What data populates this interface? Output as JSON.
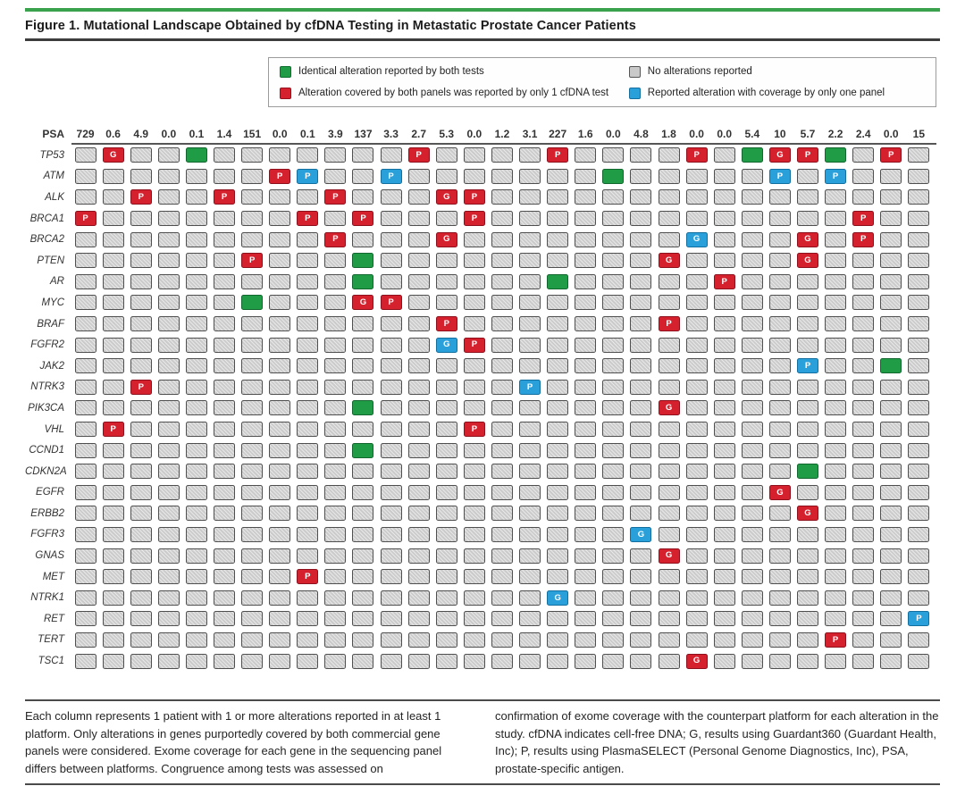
{
  "figure": {
    "title": "Figure 1. Mutational Landscape Obtained by cfDNA Testing in Metastatic Prostate Cancer Patients"
  },
  "legend": {
    "items": [
      {
        "type": "green",
        "color": "#1f9c45",
        "label": "Identical alteration reported by both tests"
      },
      {
        "type": "red",
        "color": "#d5212e",
        "label": "Alteration covered by both panels was reported by only 1 cfDNA test"
      },
      {
        "type": "gray",
        "color": "#c9c9c9",
        "label": "No alterations reported"
      },
      {
        "type": "blue",
        "color": "#2aa0da",
        "label": "Reported alteration with coverage by only one panel"
      }
    ]
  },
  "chart_data": {
    "type": "heatmap",
    "title": "Mutational Landscape Obtained by cfDNA Testing in Metastatic Prostate Cancer Patients",
    "x_header_label": "PSA",
    "x_values": [
      "729",
      "0.6",
      "4.9",
      "0.0",
      "0.1",
      "1.4",
      "151",
      "0.0",
      "0.1",
      "3.9",
      "137",
      "3.3",
      "2.7",
      "5.3",
      "0.0",
      "1.2",
      "3.1",
      "227",
      "1.6",
      "0.0",
      "4.8",
      "1.8",
      "0.0",
      "0.0",
      "5.4",
      "10",
      "5.7",
      "2.2",
      "2.4",
      "0.0",
      "15"
    ],
    "genes": [
      "TP53",
      "ATM",
      "ALK",
      "BRCA1",
      "BRCA2",
      "PTEN",
      "AR",
      "MYC",
      "BRAF",
      "FGFR2",
      "JAK2",
      "NTRK3",
      "PIK3CA",
      "VHL",
      "CCND1",
      "CDKN2A",
      "EGFR",
      "ERBB2",
      "FGFR3",
      "GNAS",
      "MET",
      "NTRK1",
      "RET",
      "TERT",
      "TSC1"
    ],
    "default_state": "gray",
    "state_meanings": {
      "green": "Identical alteration reported by both tests",
      "red": "Alteration covered by both panels was reported by only 1 cfDNA test",
      "gray": "No alterations reported",
      "blue": "Reported alteration with coverage by only one panel"
    },
    "letter_meanings": {
      "G": "Guardant360",
      "P": "PlasmaSELECT"
    },
    "alterations": {
      "TP53": [
        {
          "col": 2,
          "state": "red",
          "label": "G"
        },
        {
          "col": 5,
          "state": "green",
          "label": ""
        },
        {
          "col": 13,
          "state": "red",
          "label": "P"
        },
        {
          "col": 18,
          "state": "red",
          "label": "P"
        },
        {
          "col": 23,
          "state": "red",
          "label": "P"
        },
        {
          "col": 25,
          "state": "green",
          "label": ""
        },
        {
          "col": 26,
          "state": "red",
          "label": "G"
        },
        {
          "col": 27,
          "state": "red",
          "label": "P"
        },
        {
          "col": 28,
          "state": "green",
          "label": ""
        },
        {
          "col": 30,
          "state": "red",
          "label": "P"
        }
      ],
      "ATM": [
        {
          "col": 8,
          "state": "red",
          "label": "P"
        },
        {
          "col": 9,
          "state": "blue",
          "label": "P"
        },
        {
          "col": 12,
          "state": "blue",
          "label": "P"
        },
        {
          "col": 20,
          "state": "green",
          "label": ""
        },
        {
          "col": 26,
          "state": "blue",
          "label": "P"
        },
        {
          "col": 28,
          "state": "blue",
          "label": "P"
        }
      ],
      "ALK": [
        {
          "col": 3,
          "state": "red",
          "label": "P"
        },
        {
          "col": 6,
          "state": "red",
          "label": "P"
        },
        {
          "col": 10,
          "state": "red",
          "label": "P"
        },
        {
          "col": 14,
          "state": "red",
          "label": "G"
        },
        {
          "col": 15,
          "state": "red",
          "label": "P"
        }
      ],
      "BRCA1": [
        {
          "col": 1,
          "state": "red",
          "label": "P"
        },
        {
          "col": 9,
          "state": "red",
          "label": "P"
        },
        {
          "col": 11,
          "state": "red",
          "label": "P"
        },
        {
          "col": 15,
          "state": "red",
          "label": "P"
        },
        {
          "col": 29,
          "state": "red",
          "label": "P"
        }
      ],
      "BRCA2": [
        {
          "col": 10,
          "state": "red",
          "label": "P"
        },
        {
          "col": 14,
          "state": "red",
          "label": "G"
        },
        {
          "col": 23,
          "state": "blue",
          "label": "G"
        },
        {
          "col": 27,
          "state": "red",
          "label": "G"
        },
        {
          "col": 29,
          "state": "red",
          "label": "P"
        }
      ],
      "PTEN": [
        {
          "col": 7,
          "state": "red",
          "label": "P"
        },
        {
          "col": 11,
          "state": "green",
          "label": ""
        },
        {
          "col": 22,
          "state": "red",
          "label": "G"
        },
        {
          "col": 27,
          "state": "red",
          "label": "G"
        }
      ],
      "AR": [
        {
          "col": 11,
          "state": "green",
          "label": ""
        },
        {
          "col": 18,
          "state": "green",
          "label": ""
        },
        {
          "col": 24,
          "state": "red",
          "label": "P"
        }
      ],
      "MYC": [
        {
          "col": 7,
          "state": "green",
          "label": ""
        },
        {
          "col": 11,
          "state": "red",
          "label": "G"
        },
        {
          "col": 12,
          "state": "red",
          "label": "P"
        }
      ],
      "BRAF": [
        {
          "col": 14,
          "state": "red",
          "label": "P"
        },
        {
          "col": 22,
          "state": "red",
          "label": "P"
        }
      ],
      "FGFR2": [
        {
          "col": 14,
          "state": "blue",
          "label": "G"
        },
        {
          "col": 15,
          "state": "red",
          "label": "P"
        }
      ],
      "JAK2": [
        {
          "col": 27,
          "state": "blue",
          "label": "P"
        },
        {
          "col": 30,
          "state": "green",
          "label": ""
        }
      ],
      "NTRK3": [
        {
          "col": 3,
          "state": "red",
          "label": "P"
        },
        {
          "col": 17,
          "state": "blue",
          "label": "P"
        }
      ],
      "PIK3CA": [
        {
          "col": 11,
          "state": "green",
          "label": ""
        },
        {
          "col": 22,
          "state": "red",
          "label": "G"
        }
      ],
      "VHL": [
        {
          "col": 2,
          "state": "red",
          "label": "P"
        },
        {
          "col": 15,
          "state": "red",
          "label": "P"
        }
      ],
      "CCND1": [
        {
          "col": 11,
          "state": "green",
          "label": ""
        }
      ],
      "CDKN2A": [
        {
          "col": 27,
          "state": "green",
          "label": ""
        }
      ],
      "EGFR": [
        {
          "col": 26,
          "state": "red",
          "label": "G"
        }
      ],
      "ERBB2": [
        {
          "col": 27,
          "state": "red",
          "label": "G"
        }
      ],
      "FGFR3": [
        {
          "col": 21,
          "state": "blue",
          "label": "G"
        }
      ],
      "GNAS": [
        {
          "col": 22,
          "state": "red",
          "label": "G"
        }
      ],
      "MET": [
        {
          "col": 9,
          "state": "red",
          "label": "P"
        }
      ],
      "NTRK1": [
        {
          "col": 18,
          "state": "blue",
          "label": "G"
        }
      ],
      "RET": [
        {
          "col": 31,
          "state": "blue",
          "label": "P"
        }
      ],
      "TERT": [
        {
          "col": 28,
          "state": "red",
          "label": "P"
        }
      ],
      "TSC1": [
        {
          "col": 23,
          "state": "red",
          "label": "G"
        }
      ]
    }
  },
  "footnote": {
    "left": "Each column represents 1 patient with 1 or more alterations reported in at least 1 platform. Only alterations in genes purportedly covered by both commercial gene panels were considered. Exome coverage for each gene in the sequencing panel differs between platforms. Congruence among tests was assessed on",
    "right": "confirmation of exome coverage with the counterpart platform for each alteration in the study. cfDNA indicates cell-free DNA; G, results using Guardant360 (Guardant Health, Inc); P, results using PlasmaSELECT (Personal Genome Diagnostics, Inc), PSA, prostate-specific antigen."
  }
}
